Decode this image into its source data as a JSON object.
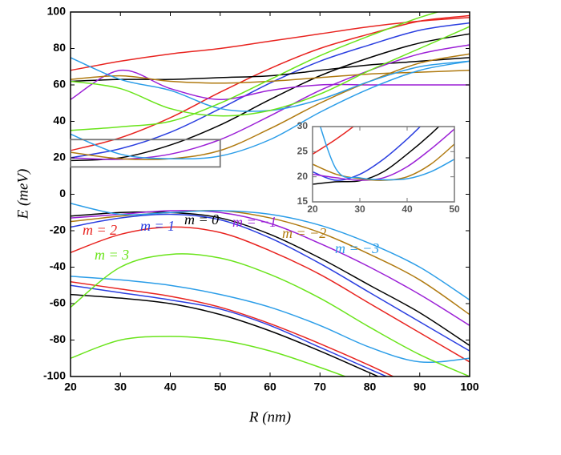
{
  "chart_data": [
    {
      "type": "line",
      "xlabel": "R (nm)",
      "ylabel": "E (meV)",
      "x": [
        20,
        30,
        40,
        50,
        60,
        70,
        80,
        90,
        100
      ],
      "xlim": [
        20,
        100
      ],
      "ylim": [
        -100,
        100
      ],
      "xticks": [
        20,
        30,
        40,
        50,
        60,
        70,
        80,
        90,
        100
      ],
      "yticks": [
        -100,
        -80,
        -60,
        -40,
        -20,
        0,
        20,
        40,
        60,
        80,
        100
      ],
      "series": [
        {
          "name": "m = 2",
          "color": "#e8231f",
          "curves": [
            [
              -32,
              -22,
              -18,
              -21,
              -31,
              -44,
              -60,
              -76,
              -92
            ],
            [
              -48,
              -52,
              -56,
              -62,
              -71,
              -82,
              -94,
              -107,
              -120
            ],
            [
              24,
              31,
              42,
              56,
              69,
              80,
              88,
              95,
              98
            ],
            [
              68,
              73,
              77,
              80,
              84,
              88,
              92,
              95,
              97
            ]
          ]
        },
        {
          "name": "m = 1",
          "color": "#2a3ee0",
          "curves": [
            [
              -18,
              -13,
              -11,
              -14,
              -24,
              -38,
              -54,
              -70,
              -86
            ],
            [
              -50,
              -54,
              -58,
              -63,
              -72,
              -84,
              -96,
              -108,
              -120
            ],
            [
              20,
              25,
              34,
              47,
              61,
              73,
              82,
              90,
              94
            ]
          ]
        },
        {
          "name": "m = 0",
          "color": "#000000",
          "curves": [
            [
              -12,
              -10,
              -10,
              -13,
              -22,
              -35,
              -50,
              -65,
              -83
            ],
            [
              -55,
              -57,
              -60,
              -66,
              -75,
              -86,
              -98,
              -110,
              -122
            ],
            [
              18.5,
              20,
              27,
              38,
              52,
              65,
              75,
              83,
              88
            ],
            [
              62,
              63,
              63,
              64,
              65,
              68,
              71,
              73,
              75
            ]
          ]
        },
        {
          "name": "m = −1",
          "color": "#9b1fd6",
          "curves": [
            [
              -13,
              -11,
              -9,
              -10,
              -16,
              -27,
              -40,
              -55,
              -72
            ],
            [
              20,
              19.2,
              22,
              30,
              43,
              57,
              68,
              77,
              82
            ],
            [
              52,
              68,
              58,
              52,
              57,
              60,
              60,
              60,
              60
            ]
          ]
        },
        {
          "name": "m = −2",
          "color": "#b07a10",
          "curves": [
            [
              -15,
              -12,
              -10,
              -9,
              -13,
              -21,
              -33,
              -47,
              -66
            ],
            [
              23,
              19.5,
              19.5,
              24,
              36,
              50,
              62,
              72,
              77
            ],
            [
              63,
              65,
              62,
              61,
              62,
              64,
              66,
              67,
              68
            ]
          ]
        },
        {
          "name": "m = −3",
          "color": "#2b9de8",
          "curves": [
            [
              -5,
              -11,
              -10,
              -9,
              -11,
              -17,
              -27,
              -40,
              -58
            ],
            [
              -45,
              -47,
              -50,
              -55,
              -62,
              -72,
              -84,
              -92,
              -90
            ],
            [
              33,
              22,
              19.5,
              21,
              30,
              45,
              58,
              68,
              73
            ],
            [
              75,
              63,
              57,
              47,
              46,
              52,
              62,
              70,
              73
            ]
          ]
        },
        {
          "name": "m = 3",
          "color": "#6ae41b",
          "curves": [
            [
              -62,
              -40,
              -33,
              -35,
              -44,
              -57,
              -73,
              -88,
              -100
            ],
            [
              -90,
              -80,
              -78,
              -80,
              -86,
              -95,
              -105,
              -115,
              -125
            ],
            [
              35,
              37,
              40,
              50,
              63,
              76,
              87,
              97,
              105
            ],
            [
              62,
              58,
              47,
              43,
              46,
              55,
              68,
              80,
              92
            ]
          ]
        }
      ]
    },
    {
      "type": "line",
      "x": [
        20,
        25,
        30,
        35,
        40,
        45,
        50
      ],
      "xlim": [
        20,
        50
      ],
      "ylim": [
        15,
        30
      ],
      "xticks": [
        20,
        30,
        40,
        50
      ],
      "yticks": [
        15,
        20,
        25,
        30
      ],
      "series": [
        {
          "color": "#e8231f",
          "curves": [
            [
              24.5,
              27.5,
              31,
              35,
              39,
              43,
              47
            ]
          ]
        },
        {
          "color": "#2a3ee0",
          "curves": [
            [
              21,
              19.3,
              20.5,
              23.5,
              27.5,
              32,
              36
            ]
          ]
        },
        {
          "color": "#000000",
          "curves": [
            [
              18.5,
              19,
              19.2,
              21,
              24.5,
              28.5,
              33
            ]
          ]
        },
        {
          "color": "#9b1fd6",
          "curves": [
            [
              20.5,
              19.8,
              19.3,
              19.8,
              22,
              25.5,
              29.5
            ]
          ]
        },
        {
          "color": "#b07a10",
          "curves": [
            [
              22.5,
              20.5,
              19.6,
              19.3,
              20,
              22.5,
              26.5
            ]
          ]
        },
        {
          "color": "#2b9de8",
          "curves": [
            [
              35,
              21.5,
              19.8,
              19.4,
              19.6,
              21,
              23.5
            ]
          ]
        }
      ]
    }
  ]
}
